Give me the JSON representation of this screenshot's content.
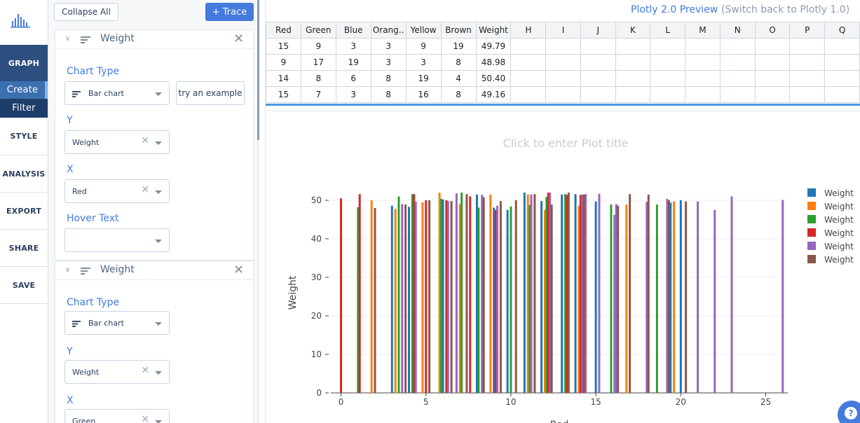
{
  "nav": {
    "graph": "GRAPH",
    "create": "Create",
    "filter": "Filter",
    "style": "STYLE",
    "analysis": "ANALYSIS",
    "export": "EXPORT",
    "share": "SHARE",
    "save": "SAVE"
  },
  "panel": {
    "collapse_all": "Collapse All",
    "add_trace": "+ Trace",
    "traces": [
      {
        "name": "Weight",
        "chart_type_label": "Chart Type",
        "chart_type_value": "Bar chart",
        "example_btn": "try an example",
        "y_label": "Y",
        "y_value": "Weight",
        "x_label": "X",
        "x_value": "Red",
        "hover_label": "Hover Text",
        "hover_value": ""
      },
      {
        "name": "Weight",
        "chart_type_label": "Chart Type",
        "chart_type_value": "Bar chart",
        "y_label": "Y",
        "y_value": "Weight",
        "x_label": "X",
        "x_value": "Green"
      }
    ]
  },
  "header": {
    "preview_link": "Plotly 2.0 Preview",
    "switch_back": "(Switch back to Plotly 1.0)"
  },
  "grid": {
    "columns": [
      "Red",
      "Green",
      "Blue",
      "Orang..",
      "Yellow",
      "Brown",
      "Weight",
      "H",
      "I",
      "J",
      "K",
      "L",
      "M",
      "N",
      "O",
      "P",
      "Q"
    ],
    "rows": [
      [
        "15",
        "9",
        "3",
        "3",
        "9",
        "19",
        "49.79"
      ],
      [
        "9",
        "17",
        "19",
        "3",
        "3",
        "8",
        "48.98"
      ],
      [
        "14",
        "8",
        "6",
        "8",
        "19",
        "4",
        "50.40"
      ],
      [
        "15",
        "7",
        "3",
        "8",
        "16",
        "8",
        "49.16"
      ]
    ]
  },
  "plot": {
    "title_placeholder": "Click to enter Plot title",
    "help_icon": "?"
  },
  "chart_data": {
    "type": "bar",
    "title": "",
    "xlabel": "Red",
    "ylabel": "Weight",
    "xlim": [
      0,
      26
    ],
    "ylim": [
      0,
      52
    ],
    "x_ticks": [
      0,
      5,
      10,
      15,
      20,
      25
    ],
    "y_ticks": [
      0,
      10,
      20,
      30,
      40,
      50
    ],
    "grid": true,
    "legend_position": "top-right",
    "series": [
      {
        "name": "Weight",
        "color": "#1f77b4",
        "points": [
          [
            3,
            48.6
          ],
          [
            4,
            48.3
          ],
          [
            6,
            50.2
          ],
          [
            8,
            51.5
          ],
          [
            9,
            48.1
          ],
          [
            9.8,
            47.5
          ],
          [
            10.8,
            52.0
          ],
          [
            11.8,
            49.8
          ],
          [
            13,
            51.5
          ],
          [
            13.8,
            51.6
          ],
          [
            15,
            49.7
          ],
          [
            19.4,
            49.4
          ],
          [
            20,
            50.0
          ]
        ]
      },
      {
        "name": "Weight",
        "color": "#ff7f0e",
        "points": [
          [
            1.8,
            50.0
          ],
          [
            3.2,
            47.8
          ],
          [
            4.8,
            49.5
          ],
          [
            5.8,
            52.0
          ],
          [
            7,
            49.0
          ],
          [
            8.8,
            51.5
          ],
          [
            11,
            51.5
          ],
          [
            12,
            47.5
          ],
          [
            14,
            48.6
          ],
          [
            16.8,
            48.9
          ],
          [
            19.6,
            49.7
          ]
        ]
      },
      {
        "name": "Weight",
        "color": "#2ca02c",
        "points": [
          [
            1,
            48.2
          ],
          [
            3.4,
            51.0
          ],
          [
            4.2,
            51.6
          ],
          [
            5.9,
            50.4
          ],
          [
            7.1,
            52.0
          ],
          [
            8.1,
            48.1
          ],
          [
            10,
            48.4
          ],
          [
            11.1,
            48.8
          ],
          [
            12.1,
            50.9
          ],
          [
            13.2,
            51.6
          ],
          [
            15.9,
            48.9
          ],
          [
            18.6,
            48.9
          ]
        ]
      },
      {
        "name": "Weight",
        "color": "#d62728",
        "points": [
          [
            0,
            50.5
          ],
          [
            1.1,
            51.6
          ],
          [
            4.3,
            51.6
          ],
          [
            5,
            50.0
          ],
          [
            6.2,
            50.0
          ],
          [
            7.6,
            51.0
          ],
          [
            9.1,
            47.5
          ],
          [
            12.2,
            52.0
          ],
          [
            13.3,
            51.4
          ],
          [
            14.1,
            51.4
          ]
        ]
      },
      {
        "name": "Weight",
        "color": "#9467bd",
        "points": [
          [
            3.6,
            49.0
          ],
          [
            4.4,
            49.7
          ],
          [
            6.3,
            49.8
          ],
          [
            6.8,
            51.8
          ],
          [
            8.3,
            51.4
          ],
          [
            9.2,
            48.6
          ],
          [
            11.2,
            51.5
          ],
          [
            12.3,
            52.0
          ],
          [
            14.2,
            51.5
          ],
          [
            14.4,
            51.6
          ],
          [
            15.2,
            51.7
          ],
          [
            16.1,
            46.2
          ],
          [
            16.2,
            49.0
          ],
          [
            18,
            49.6
          ],
          [
            19.2,
            50.4
          ],
          [
            21,
            49.7
          ],
          [
            22,
            47.5
          ],
          [
            23,
            51.0
          ],
          [
            26,
            50.1
          ]
        ]
      },
      {
        "name": "Weight",
        "color": "#8c564b",
        "points": [
          [
            2,
            48.0
          ],
          [
            3.8,
            48.9
          ],
          [
            5.2,
            50.0
          ],
          [
            6.5,
            49.8
          ],
          [
            7.4,
            51.6
          ],
          [
            8.4,
            50.8
          ],
          [
            9.4,
            49.8
          ],
          [
            10.3,
            50.0
          ],
          [
            11.4,
            51.6
          ],
          [
            12.4,
            48.9
          ],
          [
            13.4,
            52.0
          ],
          [
            14.3,
            51.5
          ],
          [
            16.3,
            48.6
          ],
          [
            17,
            51.6
          ],
          [
            18.1,
            51.5
          ],
          [
            19.3,
            50.0
          ],
          [
            20.3,
            49.7
          ]
        ]
      }
    ]
  }
}
